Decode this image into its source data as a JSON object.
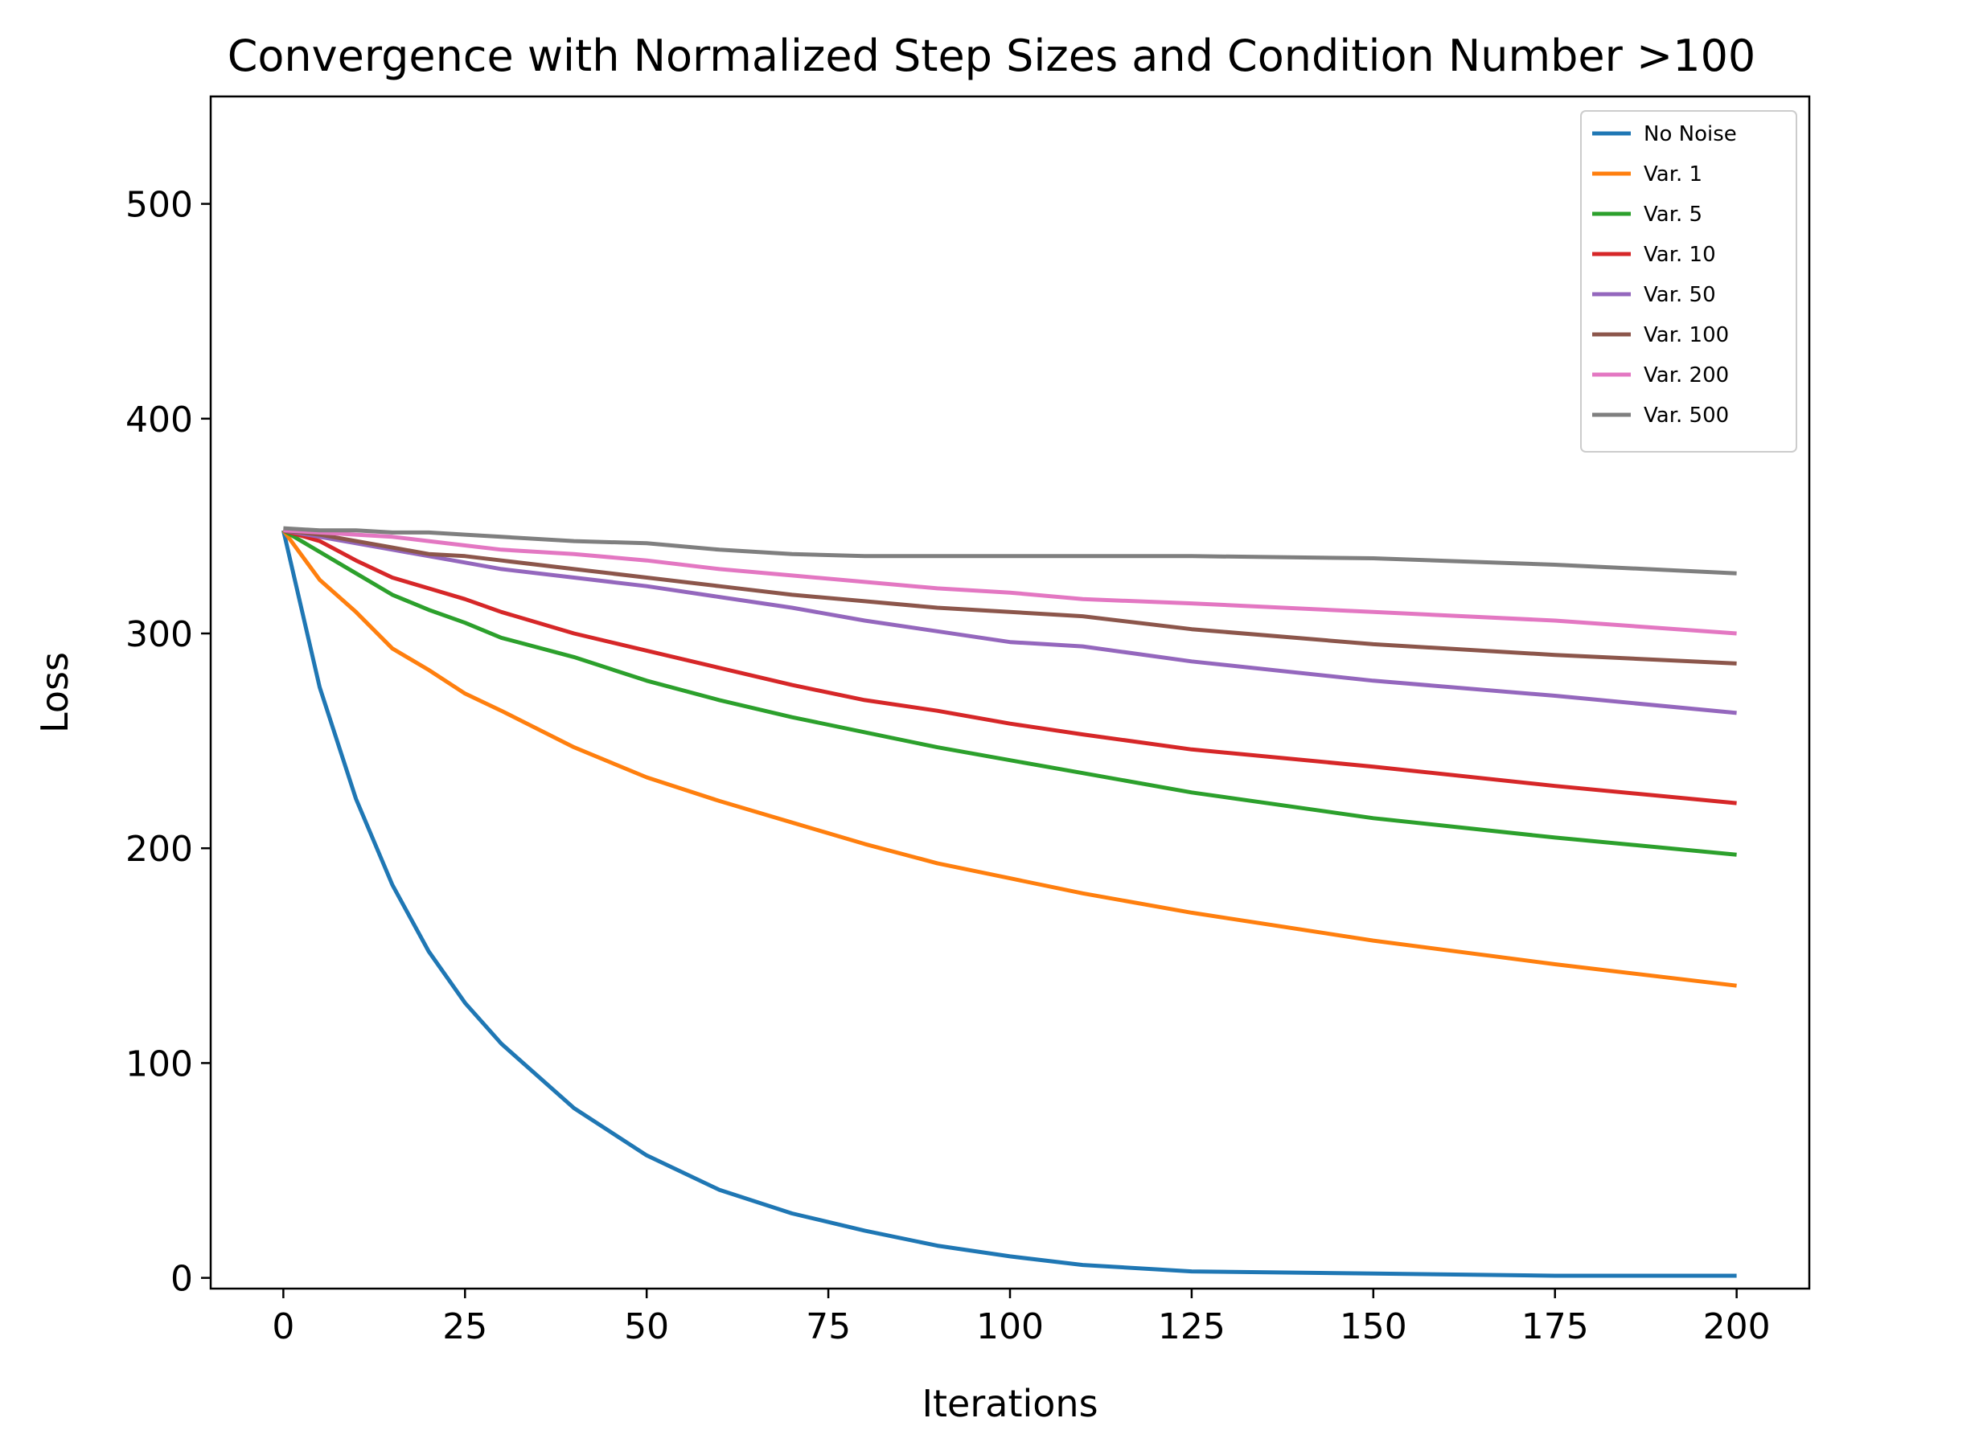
{
  "chart_data": {
    "type": "line",
    "title": "Convergence with Normalized Step Sizes and Condition Number >100",
    "xlabel": "Iterations",
    "ylabel": "Loss",
    "xlim": [
      -10,
      210
    ],
    "ylim": [
      -5,
      550
    ],
    "xticks": [
      0,
      25,
      50,
      75,
      100,
      125,
      150,
      175,
      200
    ],
    "yticks": [
      0,
      100,
      200,
      300,
      400,
      500
    ],
    "grid": false,
    "legend_position": "top-right",
    "x": [
      0,
      5,
      10,
      15,
      20,
      25,
      30,
      40,
      50,
      60,
      70,
      80,
      90,
      100,
      110,
      125,
      150,
      175,
      200
    ],
    "series": [
      {
        "name": "No Noise",
        "color": "#1f77b4",
        "values": [
          348,
          275,
          223,
          183,
          152,
          128,
          109,
          79,
          57,
          41,
          30,
          22,
          15,
          10,
          6,
          3,
          2,
          1,
          1
        ]
      },
      {
        "name": "Var. 1",
        "color": "#ff7f0e",
        "values": [
          348,
          325,
          310,
          293,
          283,
          272,
          264,
          247,
          233,
          222,
          212,
          202,
          193,
          186,
          179,
          170,
          157,
          146,
          136
        ]
      },
      {
        "name": "Var. 5",
        "color": "#2ca02c",
        "values": [
          348,
          338,
          328,
          318,
          311,
          305,
          298,
          289,
          278,
          269,
          261,
          254,
          247,
          241,
          235,
          226,
          214,
          205,
          197
        ]
      },
      {
        "name": "Var. 10",
        "color": "#d62728",
        "values": [
          348,
          343,
          334,
          326,
          321,
          316,
          310,
          300,
          292,
          284,
          276,
          269,
          264,
          258,
          253,
          246,
          238,
          229,
          221
        ]
      },
      {
        "name": "Var. 50",
        "color": "#9467bd",
        "values": [
          348,
          345,
          342,
          339,
          336,
          333,
          330,
          326,
          322,
          317,
          312,
          306,
          301,
          296,
          294,
          287,
          278,
          271,
          263
        ]
      },
      {
        "name": "Var. 100",
        "color": "#8c564b",
        "values": [
          348,
          346,
          343,
          340,
          337,
          336,
          334,
          330,
          326,
          322,
          318,
          315,
          312,
          310,
          308,
          302,
          295,
          290,
          286
        ]
      },
      {
        "name": "Var. 200",
        "color": "#e377c2",
        "values": [
          348,
          347,
          346,
          345,
          343,
          341,
          339,
          337,
          334,
          330,
          327,
          324,
          321,
          319,
          316,
          314,
          310,
          306,
          300
        ]
      },
      {
        "name": "Var. 500",
        "color": "#7f7f7f",
        "values": [
          349,
          348,
          348,
          347,
          347,
          346,
          345,
          343,
          342,
          339,
          337,
          336,
          336,
          336,
          336,
          336,
          335,
          332,
          328
        ]
      }
    ]
  }
}
